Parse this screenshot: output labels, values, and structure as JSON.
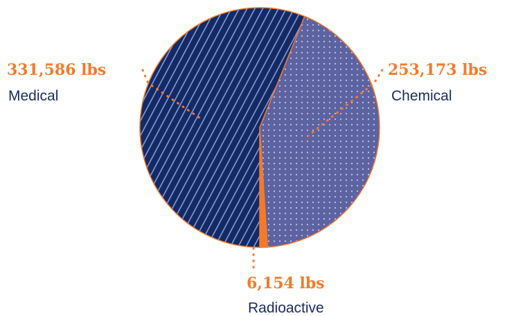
{
  "chart_data": {
    "type": "pie",
    "title": "",
    "slices": [
      {
        "category": "Medical",
        "value": 331586,
        "label": "331,586 lbs",
        "color": "#132a68",
        "pattern": "diagonal-stripes"
      },
      {
        "category": "Chemical",
        "value": 253173,
        "label": "253,173 lbs",
        "color": "#5d62a0",
        "pattern": "dots"
      },
      {
        "category": "Radioactive",
        "value": 6154,
        "label": "6,154 lbs",
        "color": "#f47a2a",
        "pattern": "solid"
      }
    ],
    "outline_color": "#f47a2a",
    "label_color": "#f47a2a",
    "category_color": "#1a2b66"
  }
}
